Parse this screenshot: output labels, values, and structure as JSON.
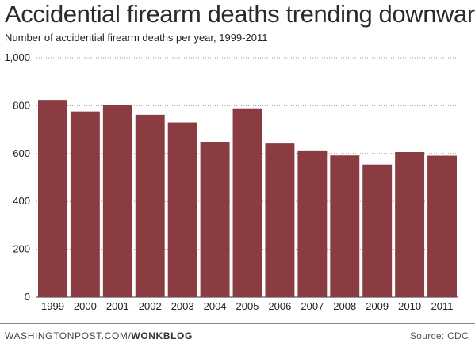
{
  "header": {
    "title": "Accidential firearm deaths trending downward",
    "subtitle": "Number of accidential firearm deaths per year, 1999-2011"
  },
  "footer": {
    "credit_site": "WASHINGTONPOST.COM/",
    "credit_section": "WONKBLOG",
    "source": "Source: CDC"
  },
  "chart_data": {
    "type": "bar",
    "categories": [
      "1999",
      "2000",
      "2001",
      "2002",
      "2003",
      "2004",
      "2005",
      "2006",
      "2007",
      "2008",
      "2009",
      "2010",
      "2011"
    ],
    "values": [
      824,
      776,
      802,
      762,
      730,
      649,
      789,
      642,
      613,
      592,
      554,
      606,
      591
    ],
    "ylim": [
      0,
      1000
    ],
    "yticks": [
      0,
      200,
      400,
      600,
      800,
      1000
    ],
    "ytick_labels": [
      "0",
      "200",
      "400",
      "600",
      "800",
      "1,000"
    ],
    "grid": true,
    "bar_color": "#8b3c42",
    "grid_color": "#999999"
  }
}
